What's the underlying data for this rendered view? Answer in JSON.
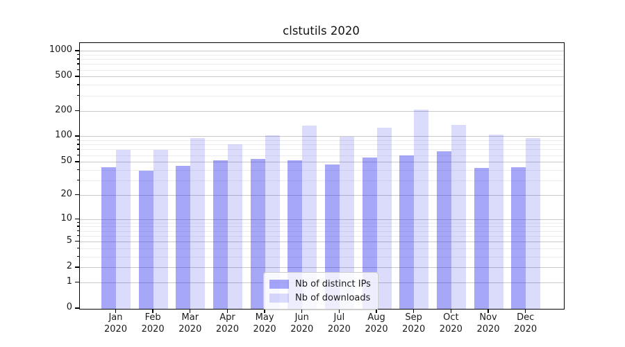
{
  "title": "clstutils 2020",
  "chart_data": {
    "type": "bar",
    "title": "clstutils 2020",
    "categories": [
      "Jan 2020",
      "Feb 2020",
      "Mar 2020",
      "Apr 2020",
      "May 2020",
      "Jun 2020",
      "Jul 2020",
      "Aug 2020",
      "Sep 2020",
      "Oct 2020",
      "Nov 2020",
      "Dec 2020"
    ],
    "months": [
      "Jan",
      "Feb",
      "Mar",
      "Apr",
      "May",
      "Jun",
      "Jul",
      "Aug",
      "Sep",
      "Oct",
      "Nov",
      "Dec"
    ],
    "year": "2020",
    "series": [
      {
        "name": "Nb of distinct IPs",
        "color": "rgba(34,34,238,0.40)",
        "values": [
          44,
          40,
          45,
          53,
          55,
          53,
          47,
          57,
          60,
          68,
          43,
          44
        ]
      },
      {
        "name": "Nb of downloads",
        "color": "rgba(34,34,238,0.16)",
        "values": [
          70,
          70,
          96,
          82,
          104,
          135,
          100,
          127,
          210,
          139,
          107,
          97
        ]
      }
    ],
    "xlabel": "",
    "ylabel": "",
    "y_axis": {
      "scale": "log1p",
      "ticks": [
        0,
        1,
        2,
        5,
        10,
        20,
        50,
        100,
        200,
        500,
        1000
      ],
      "minor_ticks": [
        3,
        4,
        6,
        7,
        8,
        9,
        30,
        40,
        60,
        70,
        80,
        90,
        300,
        400,
        600,
        700,
        800,
        900
      ],
      "ylim": [
        0,
        1230
      ]
    },
    "grid": true,
    "legend_position": "lower center"
  }
}
